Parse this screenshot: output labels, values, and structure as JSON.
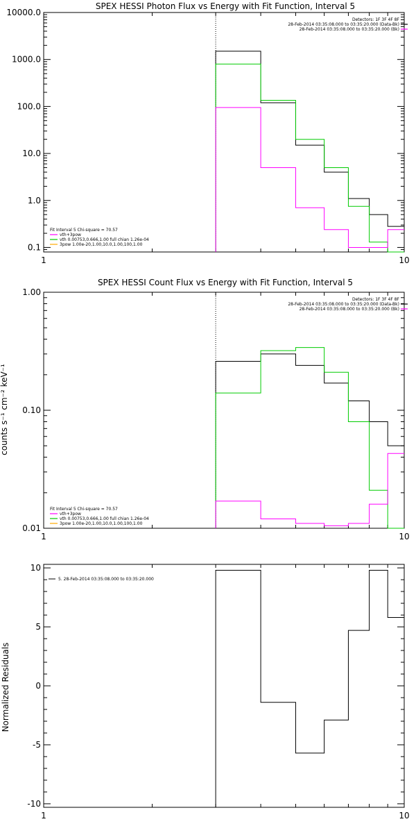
{
  "chart_data": [
    {
      "type": "line",
      "step": true,
      "title": "SPEX HESSI Photon Flux vs Energy with Fit Function, Interval 5",
      "xscale": "log",
      "yscale": "log",
      "xlim": [
        1,
        10
      ],
      "ylim": [
        0.08,
        10000
      ],
      "xticks": [
        {
          "v": 1,
          "label": "1"
        },
        {
          "v": 10,
          "label": "10"
        }
      ],
      "yticks": [
        {
          "v": 0.1,
          "label": "0.1"
        },
        {
          "v": 1,
          "label": "1.0"
        },
        {
          "v": 10,
          "label": "10.0"
        },
        {
          "v": 100,
          "label": "100.0"
        },
        {
          "v": 1000,
          "label": "1000.0"
        },
        {
          "v": 10000,
          "label": "10000.0"
        }
      ],
      "dotted_line_x": 3,
      "header_lines": [
        "Detectors: 1F 3F 4F 8F",
        "28-Feb-2014 03:35:08.000 to 03:35:20.000 (Data-Bk)",
        "28-Feb-2014 03:35:08.000 to 03:35:20.000 (Bk)"
      ],
      "header_colors": [
        "",
        "#000000",
        "#ff00ff"
      ],
      "fit_lines": [
        "Fit Interval 5   Chi-square = 70.57",
        "vth+3pow",
        "vth 0.00753,0.666,1.00  full chian 1.26e-04",
        "3pow 1.00e-20,1.00,10.0,1.00,100,1.00"
      ],
      "fit_colors": [
        "",
        "#ff00ff",
        "#00cc00",
        "#ffaa00"
      ],
      "edges": [
        3,
        4,
        5,
        6,
        7,
        8,
        9,
        10
      ],
      "series": [
        {
          "name": "Data-Bk",
          "color": "#000000",
          "values": [
            1500,
            120,
            15,
            4,
            1.1,
            0.5,
            0.28
          ]
        },
        {
          "name": "vth",
          "color": "#00cc00",
          "values": [
            800,
            135,
            20,
            5,
            0.75,
            0.13,
            0.08
          ]
        },
        {
          "name": "Bk",
          "color": "#ff00ff",
          "values": [
            95,
            5,
            0.7,
            0.24,
            0.1,
            0.1,
            0.24
          ]
        }
      ]
    },
    {
      "type": "line",
      "step": true,
      "title": "SPEX HESSI Count Flux vs Energy with Fit Function, Interval 5",
      "ylabel": "counts s⁻¹ cm⁻² keV⁻¹",
      "xscale": "log",
      "yscale": "log",
      "xlim": [
        1,
        10
      ],
      "ylim": [
        0.01,
        1
      ],
      "xticks": [
        {
          "v": 1,
          "label": "1"
        },
        {
          "v": 10,
          "label": "10"
        }
      ],
      "yticks": [
        {
          "v": 0.01,
          "label": "0.01"
        },
        {
          "v": 0.1,
          "label": "0.10"
        },
        {
          "v": 1,
          "label": "1.00"
        }
      ],
      "dotted_line_x": 3,
      "header_lines": [
        "Detectors: 1F 3F 4F 8F",
        "28-Feb-2014 03:35:08.000 to 03:35:20.000 (Data-Bk)",
        "28-Feb-2014 03:35:08.000 to 03:35:20.000 (Bk)"
      ],
      "header_colors": [
        "",
        "#000000",
        "#ff00ff"
      ],
      "fit_lines": [
        "Fit Interval 5   Chi-square = 70.57",
        "vth+3pow",
        "vth 0.00753,0.666,1.00  full chian 1.26e-04",
        "3pow 1.00e-20,1.00,10.0,1.00,100,1.00"
      ],
      "fit_colors": [
        "",
        "#ff00ff",
        "#00cc00",
        "#ffaa00"
      ],
      "edges": [
        3,
        4,
        5,
        6,
        7,
        8,
        9,
        10
      ],
      "series": [
        {
          "name": "Data-Bk",
          "color": "#000000",
          "values": [
            0.26,
            0.3,
            0.24,
            0.17,
            0.12,
            0.08,
            0.05
          ]
        },
        {
          "name": "vth",
          "color": "#00cc00",
          "values": [
            0.14,
            0.32,
            0.34,
            0.21,
            0.08,
            0.021,
            0.009
          ]
        },
        {
          "name": "Bk",
          "color": "#ff00ff",
          "values": [
            0.017,
            0.012,
            0.011,
            0.0105,
            0.011,
            0.016,
            0.043
          ]
        }
      ]
    },
    {
      "type": "line",
      "step": true,
      "ylabel": "Normalized Residuals",
      "xscale": "log",
      "yscale": "linear",
      "xlim": [
        1,
        10
      ],
      "ylim": [
        -10.3,
        10.3
      ],
      "xticks": [
        {
          "v": 1,
          "label": "1"
        },
        {
          "v": 10,
          "label": "10"
        }
      ],
      "yticks": [
        {
          "v": -10,
          "label": "-10"
        },
        {
          "v": -5,
          "label": "-5"
        },
        {
          "v": 0,
          "label": "0"
        },
        {
          "v": 5,
          "label": "5"
        },
        {
          "v": 10,
          "label": "10"
        }
      ],
      "legend": "5. 28-Feb-2014 03:35:08.000 to 03:35:20.000",
      "edges": [
        3,
        4,
        5,
        6,
        7,
        8,
        9,
        10
      ],
      "series": [
        {
          "color": "#000000",
          "values": [
            9.8,
            -1.4,
            -5.7,
            -2.9,
            4.7,
            9.8,
            5.8
          ]
        }
      ]
    }
  ]
}
